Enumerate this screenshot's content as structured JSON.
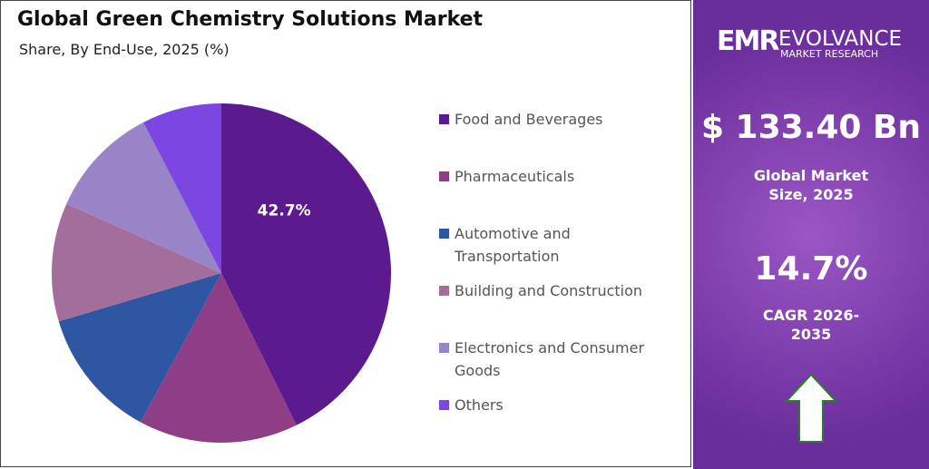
{
  "chart_data": {
    "type": "pie",
    "title": "Global Green Chemistry Solutions Market",
    "subtitle": "Share, By End-Use, 2025 (%)",
    "categories": [
      "Food and Beverages",
      "Pharmaceuticals",
      "Automotive and Transportation",
      "Building and Construction",
      "Electronics and Consumer Goods",
      "Others"
    ],
    "values": [
      42.7,
      15.2,
      12.5,
      11.3,
      10.7,
      7.6
    ],
    "value_labels": [
      "42.7%",
      null,
      null,
      null,
      null,
      null
    ],
    "colors": [
      "#5b1a8e",
      "#8e3d86",
      "#2f56a3",
      "#a46e9c",
      "#9a84c8",
      "#7b46e2"
    ]
  },
  "panel": {
    "logo_mark": "EMR",
    "brand": "EVOLVANCE",
    "brand_sub": "MARKET RESEARCH",
    "market_size": "$ 133.40 Bn",
    "market_size_label": "Global Market Size, 2025",
    "cagr": "14.7%",
    "cagr_label": "CAGR 2026-2035"
  }
}
